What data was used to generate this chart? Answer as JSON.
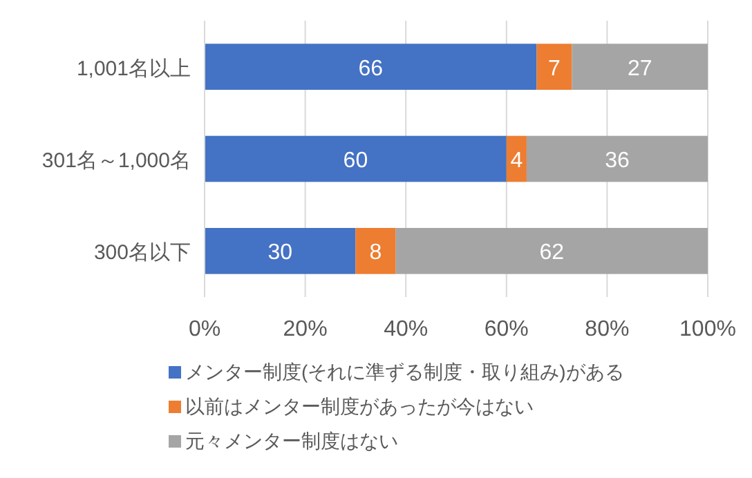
{
  "chart_data": {
    "type": "bar",
    "orientation": "horizontal",
    "stacked": true,
    "data_labels": true,
    "grid": "x",
    "legend": "bottom",
    "categories": [
      "1,001名以上",
      "301名～1,000名",
      "300名以下"
    ],
    "series": [
      {
        "name": "メンター制度(それに準ずる制度・取り組み)がある",
        "color": "#4472c4",
        "values": [
          66,
          60,
          30
        ]
      },
      {
        "name": "以前はメンター制度があったが今はない",
        "color": "#ed7d31",
        "values": [
          7,
          4,
          8
        ]
      },
      {
        "name": "元々メンター制度はない",
        "color": "#a5a5a5",
        "values": [
          27,
          36,
          62
        ]
      }
    ],
    "xlim": [
      0,
      100
    ],
    "xticks": [
      {
        "value": 0,
        "label": "0%"
      },
      {
        "value": 20,
        "label": "20%"
      },
      {
        "value": 40,
        "label": "40%"
      },
      {
        "value": 60,
        "label": "60%"
      },
      {
        "value": 80,
        "label": "80%"
      },
      {
        "value": 100,
        "label": "100%"
      }
    ]
  }
}
